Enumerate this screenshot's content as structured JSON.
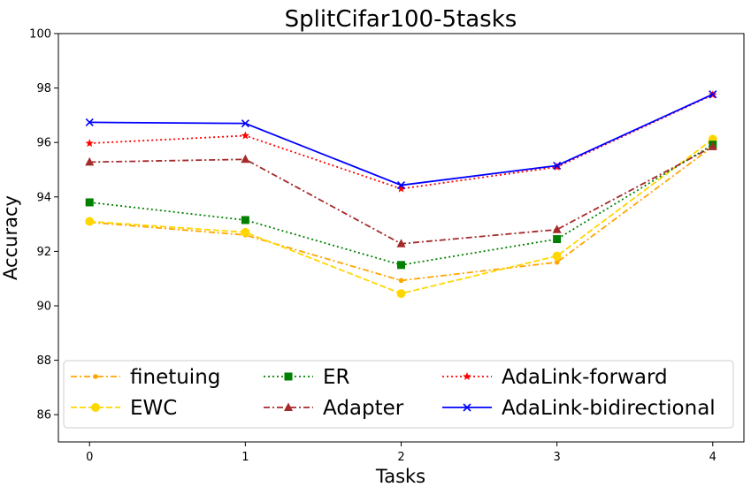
{
  "chart_data": {
    "type": "line",
    "title": "SplitCifar100-5tasks",
    "xlabel": "Tasks",
    "ylabel": "Accuracy",
    "x": [
      0,
      1,
      2,
      3,
      4
    ],
    "x_tick_labels": [
      "0",
      "1",
      "2",
      "3",
      "4"
    ],
    "y_ticks": [
      86,
      88,
      90,
      92,
      94,
      96,
      98,
      100
    ],
    "ylim": [
      85,
      100
    ],
    "xlim": [
      -0.2,
      4.2
    ],
    "grid": false,
    "legend_position": "lower-center",
    "series": [
      {
        "name": "finetuing",
        "color": "#ffa500",
        "dash": "dashdot",
        "marker": "point",
        "values": [
          93.07,
          92.6,
          90.93,
          91.6,
          95.85
        ]
      },
      {
        "name": "EWC",
        "color": "#ffd700",
        "dash": "dashed",
        "marker": "circle",
        "values": [
          93.1,
          92.7,
          90.45,
          91.83,
          96.12
        ]
      },
      {
        "name": "ER",
        "color": "#008000",
        "dash": "dotted",
        "marker": "square",
        "values": [
          93.8,
          93.15,
          91.5,
          92.45,
          95.92
        ]
      },
      {
        "name": "Adapter",
        "color": "#a52a2a",
        "dash": "dashdot",
        "marker": "triangle",
        "values": [
          95.28,
          95.38,
          92.28,
          92.8,
          95.85
        ]
      },
      {
        "name": "AdaLink-forward",
        "color": "#ff0000",
        "dash": "dotted",
        "marker": "star",
        "values": [
          95.97,
          96.25,
          94.3,
          95.1,
          97.75
        ]
      },
      {
        "name": "AdaLink-bidirectional",
        "color": "#0000ff",
        "dash": "solid",
        "marker": "x",
        "values": [
          96.74,
          96.7,
          94.43,
          95.15,
          97.77
        ]
      }
    ]
  }
}
